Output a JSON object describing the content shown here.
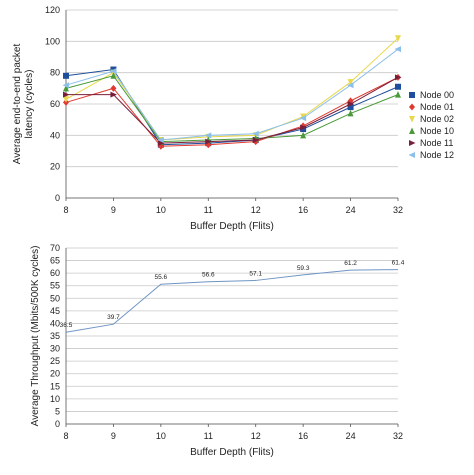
{
  "chart_data": [
    {
      "type": "line",
      "categories": [
        "8",
        "9",
        "10",
        "11",
        "12",
        "16",
        "24",
        "32"
      ],
      "xlabel": "Buffer Depth (Flits)",
      "ylabel": "Average end-to-end packet latency (cycles)",
      "ylim": [
        0,
        120
      ],
      "yticks": [
        "0",
        "20",
        "40",
        "60",
        "80",
        "100",
        "120"
      ],
      "grid": true,
      "legend_position": "right",
      "series": [
        {
          "name": "Node 00",
          "color": "#1f4e9c",
          "marker": "square",
          "values": [
            78,
            82,
            34,
            35,
            37,
            44,
            58,
            71
          ]
        },
        {
          "name": "Node 01",
          "color": "#e03a2f",
          "marker": "diamond",
          "values": [
            61,
            70,
            33,
            34,
            36,
            46,
            62,
            77
          ]
        },
        {
          "name": "Node 02",
          "color": "#e8d84a",
          "marker": "tri-down",
          "values": [
            63,
            80,
            37,
            39,
            40,
            52,
            74,
            102
          ]
        },
        {
          "name": "Node 10",
          "color": "#4a9a3a",
          "marker": "tri-up",
          "values": [
            70,
            78,
            36,
            37,
            38,
            40,
            54,
            66
          ]
        },
        {
          "name": "Node 11",
          "color": "#7a1f3a",
          "marker": "tri-right",
          "values": [
            66,
            66,
            35,
            36,
            37,
            45,
            60,
            77
          ]
        },
        {
          "name": "Node 12",
          "color": "#8cc0e8",
          "marker": "tri-left",
          "values": [
            72,
            81,
            37,
            40,
            41,
            51,
            72,
            95
          ]
        }
      ]
    },
    {
      "type": "line",
      "categories": [
        "8",
        "9",
        "10",
        "11",
        "12",
        "16",
        "24",
        "32"
      ],
      "xlabel": "Buffer Depth (Flits)",
      "ylabel": "Average Throughput (Mbits/500K cycles)",
      "ylim": [
        0,
        70
      ],
      "yticks": [
        "0",
        "5",
        "10",
        "15",
        "20",
        "25",
        "30",
        "35",
        "40",
        "45",
        "50",
        "55",
        "60",
        "65",
        "70"
      ],
      "grid": true,
      "series": [
        {
          "color": "#6f95c4",
          "values": [
            36.5,
            39.7,
            55.6,
            56.6,
            57.1,
            59.3,
            61.2,
            61.4
          ],
          "labels": [
            "36.5",
            "39.7",
            "55.6",
            "56.6",
            "57.1",
            "59.3",
            "61.2",
            "61.4"
          ]
        }
      ]
    }
  ]
}
